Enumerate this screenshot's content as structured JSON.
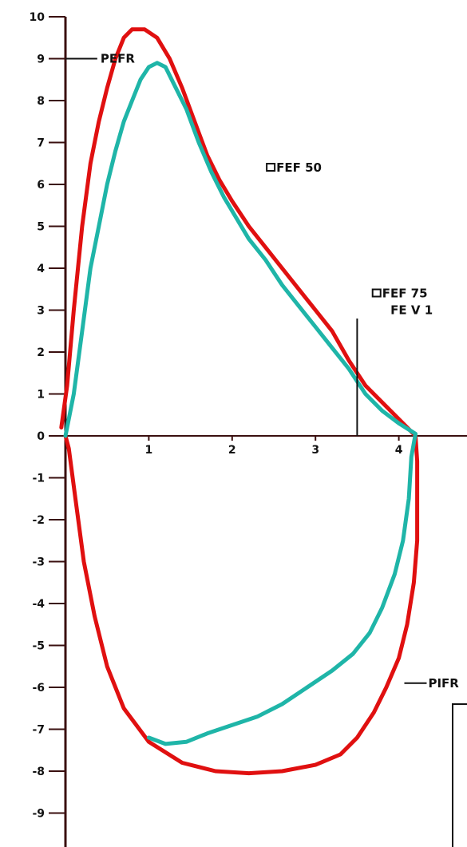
{
  "chart_data": {
    "type": "line",
    "title": "",
    "xlabel": "",
    "ylabel": "",
    "xlim": [
      0,
      4.7
    ],
    "ylim": [
      -10,
      10
    ],
    "grid": false,
    "legend": "none",
    "x_ticks": [
      1,
      2,
      3,
      4
    ],
    "x_tick_labels": [
      "1",
      "2",
      "3",
      "4"
    ],
    "y_ticks": [
      10,
      9,
      8,
      7,
      6,
      5,
      4,
      3,
      2,
      1,
      0,
      -1,
      -2,
      -3,
      -4,
      -5,
      -6,
      -7,
      -8,
      -9,
      -10
    ],
    "y_tick_labels": [
      "10",
      "9",
      "8",
      "7",
      "6",
      "5",
      "4",
      "3",
      "2",
      "1",
      "0",
      "-1",
      "-2",
      "-3",
      "-4",
      "-5",
      "-6",
      "-7",
      "-8",
      "-9",
      "-10"
    ],
    "series": [
      {
        "color": "#e01010",
        "points": [
          [
            -0.05,
            0.2
          ],
          [
            0.02,
            1.2
          ],
          [
            0.1,
            3.0
          ],
          [
            0.2,
            5.0
          ],
          [
            0.3,
            6.5
          ],
          [
            0.4,
            7.5
          ],
          [
            0.5,
            8.3
          ],
          [
            0.6,
            9.0
          ],
          [
            0.7,
            9.5
          ],
          [
            0.8,
            9.7
          ],
          [
            0.95,
            9.7
          ],
          [
            1.1,
            9.5
          ],
          [
            1.25,
            9.0
          ],
          [
            1.4,
            8.3
          ],
          [
            1.55,
            7.5
          ],
          [
            1.7,
            6.7
          ],
          [
            1.85,
            6.1
          ],
          [
            2.0,
            5.6
          ],
          [
            2.2,
            5.0
          ],
          [
            2.4,
            4.5
          ],
          [
            2.6,
            4.0
          ],
          [
            2.8,
            3.5
          ],
          [
            3.0,
            3.0
          ],
          [
            3.2,
            2.5
          ],
          [
            3.4,
            1.8
          ],
          [
            3.6,
            1.2
          ],
          [
            3.8,
            0.8
          ],
          [
            4.0,
            0.4
          ],
          [
            4.2,
            0.0
          ],
          [
            4.22,
            -0.6
          ],
          [
            4.22,
            -1.5
          ],
          [
            4.22,
            -2.5
          ],
          [
            4.18,
            -3.5
          ],
          [
            4.1,
            -4.5
          ],
          [
            4.0,
            -5.3
          ],
          [
            3.85,
            -6.0
          ],
          [
            3.7,
            -6.6
          ],
          [
            3.5,
            -7.2
          ],
          [
            3.3,
            -7.6
          ],
          [
            3.0,
            -7.85
          ],
          [
            2.6,
            -8.0
          ],
          [
            2.2,
            -8.05
          ],
          [
            1.8,
            -8.0
          ],
          [
            1.4,
            -7.8
          ],
          [
            1.0,
            -7.3
          ],
          [
            0.7,
            -6.5
          ],
          [
            0.5,
            -5.5
          ],
          [
            0.35,
            -4.3
          ],
          [
            0.22,
            -3.0
          ],
          [
            0.12,
            -1.5
          ],
          [
            0.04,
            -0.3
          ],
          [
            0.0,
            0.0
          ]
        ]
      },
      {
        "color": "#1fb5a8",
        "points": [
          [
            0.0,
            0.0
          ],
          [
            0.1,
            1.0
          ],
          [
            0.2,
            2.5
          ],
          [
            0.3,
            4.0
          ],
          [
            0.4,
            5.0
          ],
          [
            0.5,
            6.0
          ],
          [
            0.6,
            6.8
          ],
          [
            0.7,
            7.5
          ],
          [
            0.8,
            8.0
          ],
          [
            0.9,
            8.5
          ],
          [
            1.0,
            8.8
          ],
          [
            1.1,
            8.9
          ],
          [
            1.2,
            8.8
          ],
          [
            1.3,
            8.4
          ],
          [
            1.45,
            7.8
          ],
          [
            1.6,
            7.0
          ],
          [
            1.75,
            6.3
          ],
          [
            1.9,
            5.7
          ],
          [
            2.05,
            5.2
          ],
          [
            2.2,
            4.7
          ],
          [
            2.4,
            4.2
          ],
          [
            2.6,
            3.6
          ],
          [
            2.8,
            3.1
          ],
          [
            3.0,
            2.6
          ],
          [
            3.2,
            2.1
          ],
          [
            3.4,
            1.6
          ],
          [
            3.6,
            1.0
          ],
          [
            3.8,
            0.6
          ],
          [
            4.0,
            0.3
          ],
          [
            4.2,
            0.05
          ],
          [
            4.15,
            -0.5
          ],
          [
            4.12,
            -1.5
          ],
          [
            4.05,
            -2.5
          ],
          [
            3.95,
            -3.3
          ],
          [
            3.8,
            -4.1
          ],
          [
            3.65,
            -4.7
          ],
          [
            3.45,
            -5.2
          ],
          [
            3.2,
            -5.6
          ],
          [
            2.9,
            -6.0
          ],
          [
            2.6,
            -6.4
          ],
          [
            2.3,
            -6.7
          ],
          [
            2.0,
            -6.9
          ],
          [
            1.7,
            -7.1
          ],
          [
            1.45,
            -7.3
          ],
          [
            1.2,
            -7.35
          ],
          [
            1.0,
            -7.2
          ]
        ]
      }
    ],
    "annotations": [
      {
        "text": "PEFR",
        "x": 0.42,
        "y": 9.0,
        "marker": "tick-left"
      },
      {
        "text": "FEF 50",
        "x": 2.53,
        "y": 6.4,
        "marker": "square"
      },
      {
        "text": "FEF 75",
        "x": 3.8,
        "y": 3.4,
        "marker": "square"
      },
      {
        "text": "FE V 1",
        "x": 3.9,
        "y": 3.0,
        "marker": "none"
      },
      {
        "text": "PIFR",
        "x": 4.2,
        "y": -5.9,
        "marker": "tick-right"
      }
    ],
    "fev1_marker_x": 3.5,
    "fev1_marker_top": 2.8
  },
  "colors": {
    "axis": "#3a0f0f",
    "red_series": "#e01010",
    "teal_series": "#1fb5a8"
  }
}
